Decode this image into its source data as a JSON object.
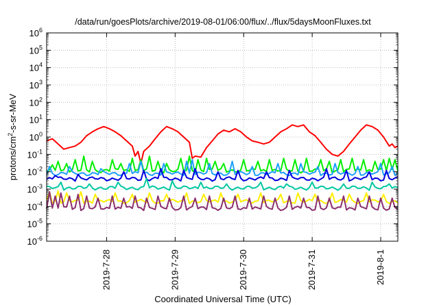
{
  "chart_data": {
    "type": "line",
    "title": "/data/run/goesPlots/archive/2019-08-01/06:00/flux/../flux/5daysMoonFluxes.txt",
    "xlabel": "Coordinated Universal Time (UTC)",
    "ylabel": {
      "before": "protons/cm",
      "sup": "2",
      "after": "-s-sr-MeV"
    },
    "y_scale": "log",
    "ylim": [
      1e-06,
      1000000.0
    ],
    "y_ticks": [
      {
        "base": "10",
        "exp": "-6",
        "value": 1e-06
      },
      {
        "base": "10",
        "exp": "-5",
        "value": 1e-05
      },
      {
        "base": "10",
        "exp": "-4",
        "value": 0.0001
      },
      {
        "base": "10",
        "exp": "-3",
        "value": 0.001
      },
      {
        "base": "10",
        "exp": "-2",
        "value": 0.01
      },
      {
        "base": "10",
        "exp": "-1",
        "value": 0.1
      },
      {
        "base": "10",
        "exp": "0",
        "value": 1.0
      },
      {
        "base": "10",
        "exp": "1",
        "value": 10.0
      },
      {
        "base": "10",
        "exp": "2",
        "value": 100.0
      },
      {
        "base": "10",
        "exp": "3",
        "value": 1000.0
      },
      {
        "base": "10",
        "exp": "4",
        "value": 10000.0
      },
      {
        "base": "10",
        "exp": "5",
        "value": 100000.0
      },
      {
        "base": "10",
        "exp": "6",
        "value": 1000000.0
      }
    ],
    "xlim": [
      "2019-07-27 03:00",
      "2019-08-01 06:00"
    ],
    "x_ticks": [
      {
        "label": "2019-7-28",
        "value": "2019-07-28 00:00"
      },
      {
        "label": "2019-7-29",
        "value": "2019-07-29 00:00"
      },
      {
        "label": "2019-7-30",
        "value": "2019-07-30 00:00"
      },
      {
        "label": "2019-7-31",
        "value": "2019-07-31 00:00"
      },
      {
        "label": "2019-8-1",
        "value": "2019-08-01 00:00"
      }
    ],
    "grid": true,
    "series": [
      {
        "color": "#ff0000",
        "points": [
          [
            "2019-07-27 03:00",
            0.6
          ],
          [
            "2019-07-27 05:00",
            0.8
          ],
          [
            "2019-07-27 07:00",
            0.4
          ],
          [
            "2019-07-27 09:00",
            0.2
          ],
          [
            "2019-07-27 11:00",
            0.25
          ],
          [
            "2019-07-27 13:00",
            0.3
          ],
          [
            "2019-07-27 15:00",
            0.5
          ],
          [
            "2019-07-27 17:00",
            1.2
          ],
          [
            "2019-07-27 19:00",
            2.0
          ],
          [
            "2019-07-27 21:00",
            3.0
          ],
          [
            "2019-07-27 23:00",
            4.0
          ],
          [
            "2019-07-28 01:00",
            3.0
          ],
          [
            "2019-07-28 03:00",
            2.0
          ],
          [
            "2019-07-28 05:00",
            1.2
          ],
          [
            "2019-07-28 07:00",
            0.6
          ],
          [
            "2019-07-28 09:00",
            0.3
          ],
          [
            "2019-07-28 10:00",
            0.08
          ],
          [
            "2019-07-28 11:00",
            0.15
          ],
          [
            "2019-07-28 12:00",
            0.03
          ],
          [
            "2019-07-28 13:00",
            0.15
          ],
          [
            "2019-07-28 15:00",
            0.3
          ],
          [
            "2019-07-28 17:00",
            0.8
          ],
          [
            "2019-07-28 19:00",
            2.0
          ],
          [
            "2019-07-28 21:00",
            4.0
          ],
          [
            "2019-07-28 23:00",
            3.0
          ],
          [
            "2019-07-29 01:00",
            2.0
          ],
          [
            "2019-07-29 03:00",
            1.0
          ],
          [
            "2019-07-29 05:00",
            0.5
          ],
          [
            "2019-07-29 06:00",
            0.06
          ],
          [
            "2019-07-29 07:00",
            0.08
          ],
          [
            "2019-07-29 09:00",
            0.07
          ],
          [
            "2019-07-29 11:00",
            0.25
          ],
          [
            "2019-07-29 13:00",
            0.6
          ],
          [
            "2019-07-29 15:00",
            1.5
          ],
          [
            "2019-07-29 17:00",
            2.5
          ],
          [
            "2019-07-29 19:00",
            2.0
          ],
          [
            "2019-07-29 21:00",
            3.0
          ],
          [
            "2019-07-29 23:00",
            2.0
          ],
          [
            "2019-07-30 01:00",
            1.0
          ],
          [
            "2019-07-30 03:00",
            0.6
          ],
          [
            "2019-07-30 05:00",
            0.5
          ],
          [
            "2019-07-30 07:00",
            0.4
          ],
          [
            "2019-07-30 09:00",
            0.5
          ],
          [
            "2019-07-30 11:00",
            1.0
          ],
          [
            "2019-07-30 13:00",
            2.0
          ],
          [
            "2019-07-30 15:00",
            3.0
          ],
          [
            "2019-07-30 17:00",
            5.0
          ],
          [
            "2019-07-30 19:00",
            4.0
          ],
          [
            "2019-07-30 21:00",
            5.0
          ],
          [
            "2019-07-30 23:00",
            2.0
          ],
          [
            "2019-07-31 01:00",
            1.2
          ],
          [
            "2019-07-31 03:00",
            0.5
          ],
          [
            "2019-07-31 05:00",
            0.2
          ],
          [
            "2019-07-31 07:00",
            0.1
          ],
          [
            "2019-07-31 09:00",
            0.08
          ],
          [
            "2019-07-31 11:00",
            0.15
          ],
          [
            "2019-07-31 13:00",
            0.4
          ],
          [
            "2019-07-31 15:00",
            1.0
          ],
          [
            "2019-07-31 17:00",
            2.5
          ],
          [
            "2019-07-31 19:00",
            5.0
          ],
          [
            "2019-07-31 21:00",
            4.0
          ],
          [
            "2019-07-31 23:00",
            2.5
          ],
          [
            "2019-08-01 01:00",
            1.0
          ],
          [
            "2019-08-01 03:00",
            0.3
          ],
          [
            "2019-08-01 04:00",
            0.4
          ],
          [
            "2019-08-01 05:00",
            0.25
          ],
          [
            "2019-08-01 06:00",
            0.3
          ]
        ]
      },
      {
        "color": "#00ee00",
        "base": 0.012,
        "spikes": [
          [
            "2019-07-27 05:00",
            0.025
          ],
          [
            "2019-07-27 07:00",
            0.04
          ],
          [
            "2019-07-27 10:00",
            0.03
          ],
          [
            "2019-07-27 13:00",
            0.05
          ],
          [
            "2019-07-27 16:00",
            0.08
          ],
          [
            "2019-07-27 19:00",
            0.04
          ],
          [
            "2019-07-28 02:00",
            0.05
          ],
          [
            "2019-07-28 05:00",
            0.03
          ],
          [
            "2019-07-28 09:00",
            0.06
          ],
          [
            "2019-07-28 12:00",
            0.05
          ],
          [
            "2019-07-28 15:00",
            0.08
          ],
          [
            "2019-07-28 18:00",
            0.04
          ],
          [
            "2019-07-28 21:00",
            0.03
          ],
          [
            "2019-07-29 02:00",
            0.06
          ],
          [
            "2019-07-29 05:00",
            0.08
          ],
          [
            "2019-07-29 08:00",
            0.05
          ],
          [
            "2019-07-29 11:00",
            0.06
          ],
          [
            "2019-07-29 14:00",
            0.04
          ],
          [
            "2019-07-29 17:00",
            0.03
          ],
          [
            "2019-07-30 00:00",
            0.05
          ],
          [
            "2019-07-30 05:00",
            0.04
          ],
          [
            "2019-07-30 09:00",
            0.05
          ],
          [
            "2019-07-30 14:00",
            0.06
          ],
          [
            "2019-07-30 18:00",
            0.05
          ],
          [
            "2019-07-30 22:00",
            0.06
          ],
          [
            "2019-07-31 03:00",
            0.05
          ],
          [
            "2019-07-31 06:00",
            0.04
          ],
          [
            "2019-07-31 10:00",
            0.05
          ],
          [
            "2019-07-31 14:00",
            0.06
          ],
          [
            "2019-07-31 18:00",
            0.05
          ],
          [
            "2019-07-31 22:00",
            0.04
          ],
          [
            "2019-08-01 01:00",
            0.05
          ],
          [
            "2019-08-01 03:00",
            0.06
          ],
          [
            "2019-08-01 05:00",
            0.05
          ]
        ]
      },
      {
        "color": "#1ea0ff",
        "base": 0.008,
        "spikes": [
          [
            "2019-07-27 04:00",
            0.02
          ],
          [
            "2019-07-27 11:00",
            0.02
          ],
          [
            "2019-07-27 22:00",
            0.015
          ],
          [
            "2019-07-28 08:00",
            0.03
          ],
          [
            "2019-07-28 12:00",
            0.04
          ],
          [
            "2019-07-28 20:00",
            0.03
          ],
          [
            "2019-07-29 04:00",
            0.04
          ],
          [
            "2019-07-29 06:00",
            0.05
          ],
          [
            "2019-07-29 12:00",
            0.03
          ],
          [
            "2019-07-29 20:00",
            0.04
          ],
          [
            "2019-07-30 03:00",
            0.02
          ],
          [
            "2019-07-30 12:00",
            0.03
          ],
          [
            "2019-07-30 20:00",
            0.03
          ],
          [
            "2019-07-31 02:00",
            0.02
          ],
          [
            "2019-07-31 08:00",
            0.03
          ],
          [
            "2019-07-31 16:00",
            0.02
          ],
          [
            "2019-08-01 00:00",
            0.03
          ],
          [
            "2019-08-01 04:00",
            0.02
          ]
        ]
      },
      {
        "color": "#0000dd",
        "base": 0.004,
        "spikes": [
          [
            "2019-07-27 06:00",
            0.006
          ],
          [
            "2019-07-27 14:00",
            0.007
          ],
          [
            "2019-07-28 06:00",
            0.01
          ],
          [
            "2019-07-28 13:00",
            0.012
          ],
          [
            "2019-07-28 19:00",
            0.015
          ],
          [
            "2019-07-29 03:00",
            0.012
          ],
          [
            "2019-07-29 07:00",
            0.015
          ],
          [
            "2019-07-29 15:00",
            0.01
          ],
          [
            "2019-07-29 22:00",
            0.012
          ],
          [
            "2019-07-30 08:00",
            0.01
          ],
          [
            "2019-07-30 16:00",
            0.012
          ],
          [
            "2019-07-31 05:00",
            0.015
          ],
          [
            "2019-07-31 12:00",
            0.012
          ],
          [
            "2019-07-31 20:00",
            0.01
          ],
          [
            "2019-08-01 02:00",
            0.012
          ]
        ]
      },
      {
        "color": "#00c8a0",
        "base": 0.0012,
        "spikes": [
          [
            "2019-07-27 08:00",
            0.0025
          ],
          [
            "2019-07-27 18:00",
            0.002
          ],
          [
            "2019-07-28 04:00",
            0.0025
          ],
          [
            "2019-07-28 14:00",
            0.004
          ],
          [
            "2019-07-28 23:00",
            0.003
          ],
          [
            "2019-07-29 09:00",
            0.0025
          ],
          [
            "2019-07-29 18:00",
            0.002
          ],
          [
            "2019-07-30 06:00",
            0.0025
          ],
          [
            "2019-07-30 15:00",
            0.002
          ],
          [
            "2019-07-31 00:00",
            0.0025
          ],
          [
            "2019-07-31 11:00",
            0.002
          ],
          [
            "2019-07-31 21:00",
            0.0025
          ],
          [
            "2019-08-01 03:00",
            0.002
          ]
        ]
      },
      {
        "color": "#ffee00",
        "base": 0.0002,
        "spikes": [
          [
            "2019-07-27 04:00",
            0.0007
          ],
          [
            "2019-07-27 07:00",
            0.0008
          ],
          [
            "2019-07-27 10:00",
            0.0006
          ],
          [
            "2019-07-27 15:00",
            0.0007
          ],
          [
            "2019-07-27 20:00",
            0.0005
          ],
          [
            "2019-07-28 03:00",
            0.0006
          ],
          [
            "2019-07-28 09:00",
            0.0005
          ],
          [
            "2019-07-28 15:00",
            0.0006
          ],
          [
            "2019-07-28 21:00",
            0.0005
          ],
          [
            "2019-07-29 04:00",
            0.0006
          ],
          [
            "2019-07-29 10:00",
            0.0005
          ],
          [
            "2019-07-29 16:00",
            0.0006
          ],
          [
            "2019-07-29 22:00",
            0.0005
          ],
          [
            "2019-07-30 06:00",
            0.0006
          ],
          [
            "2019-07-30 13:00",
            0.0005
          ],
          [
            "2019-07-30 19:00",
            0.0006
          ],
          [
            "2019-07-31 01:00",
            0.0005
          ],
          [
            "2019-07-31 07:00",
            0.0006
          ],
          [
            "2019-07-31 13:00",
            0.0005
          ],
          [
            "2019-07-31 19:00",
            0.0006
          ],
          [
            "2019-08-01 01:00",
            0.0005
          ]
        ]
      },
      {
        "color": "#8b2f6e",
        "base": 8e-05,
        "spikes": [
          [
            "2019-07-27 04:00",
            0.0007
          ],
          [
            "2019-07-27 06:00",
            0.0004
          ],
          [
            "2019-07-27 08:00",
            0.0006
          ],
          [
            "2019-07-27 11:00",
            0.0004
          ],
          [
            "2019-07-27 14:00",
            0.0005
          ],
          [
            "2019-07-27 17:00",
            0.0004
          ],
          [
            "2019-07-27 21:00",
            0.0003
          ],
          [
            "2019-07-28 02:00",
            0.0004
          ],
          [
            "2019-07-28 06:00",
            0.0003
          ],
          [
            "2019-07-28 10:00",
            0.0004
          ],
          [
            "2019-07-28 14:00",
            0.0003
          ],
          [
            "2019-07-28 18:00",
            0.0004
          ],
          [
            "2019-07-28 22:00",
            0.0003
          ],
          [
            "2019-07-29 03:00",
            0.0004
          ],
          [
            "2019-07-29 07:00",
            0.0003
          ],
          [
            "2019-07-29 12:00",
            0.0004
          ],
          [
            "2019-07-29 17:00",
            0.0003
          ],
          [
            "2019-07-29 21:00",
            0.0004
          ],
          [
            "2019-07-30 02:00",
            0.0003
          ],
          [
            "2019-07-30 07:00",
            0.0004
          ],
          [
            "2019-07-30 11:00",
            0.0003
          ],
          [
            "2019-07-30 16:00",
            0.0004
          ],
          [
            "2019-07-30 21:00",
            0.0003
          ],
          [
            "2019-07-31 02:00",
            0.0004
          ],
          [
            "2019-07-31 06:00",
            0.0003
          ],
          [
            "2019-07-31 11:00",
            0.0004
          ],
          [
            "2019-07-31 16:00",
            0.0003
          ],
          [
            "2019-07-31 20:00",
            0.0004
          ],
          [
            "2019-08-01 00:00",
            0.0003
          ],
          [
            "2019-08-01 04:00",
            0.0003
          ]
        ]
      }
    ]
  }
}
